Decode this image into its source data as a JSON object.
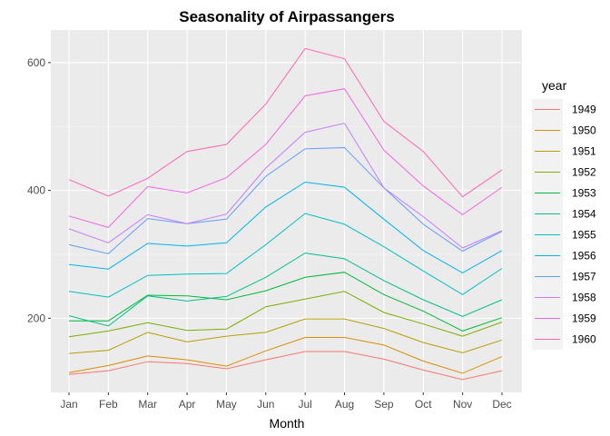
{
  "chart_data": {
    "type": "line",
    "title": "Seasonality of Airpassangers",
    "xlabel": "Month",
    "ylabel": "",
    "legend_title": "year",
    "legend_position": "right",
    "grid": true,
    "categories": [
      "Jan",
      "Feb",
      "Mar",
      "Apr",
      "May",
      "Jun",
      "Jul",
      "Aug",
      "Sep",
      "Oct",
      "Nov",
      "Dec"
    ],
    "ylim": [
      84,
      651
    ],
    "yticks": [
      200,
      400,
      600
    ],
    "colors": [
      "#F8766D",
      "#DE8C00",
      "#B79F00",
      "#7CAE00",
      "#00BA38",
      "#00C08B",
      "#00BFC4",
      "#00B4F0",
      "#619CFF",
      "#C77CFF",
      "#F564E3",
      "#FF64B0"
    ],
    "series": [
      {
        "name": "1949",
        "values": [
          112,
          118,
          132,
          129,
          121,
          135,
          148,
          148,
          136,
          119,
          104,
          118
        ]
      },
      {
        "name": "1950",
        "values": [
          115,
          126,
          141,
          135,
          125,
          149,
          170,
          170,
          158,
          133,
          114,
          140
        ]
      },
      {
        "name": "1951",
        "values": [
          145,
          150,
          178,
          163,
          172,
          178,
          199,
          199,
          184,
          162,
          146,
          166
        ]
      },
      {
        "name": "1952",
        "values": [
          171,
          180,
          193,
          181,
          183,
          218,
          230,
          242,
          209,
          191,
          172,
          194
        ]
      },
      {
        "name": "1953",
        "values": [
          196,
          196,
          236,
          235,
          229,
          243,
          264,
          272,
          237,
          211,
          180,
          201
        ]
      },
      {
        "name": "1954",
        "values": [
          204,
          188,
          235,
          227,
          234,
          264,
          302,
          293,
          259,
          229,
          203,
          229
        ]
      },
      {
        "name": "1955",
        "values": [
          242,
          233,
          267,
          269,
          270,
          315,
          364,
          347,
          312,
          274,
          237,
          278
        ]
      },
      {
        "name": "1956",
        "values": [
          284,
          277,
          317,
          313,
          318,
          374,
          413,
          405,
          355,
          306,
          271,
          306
        ]
      },
      {
        "name": "1957",
        "values": [
          315,
          301,
          356,
          348,
          355,
          422,
          465,
          467,
          404,
          347,
          305,
          336
        ]
      },
      {
        "name": "1958",
        "values": [
          340,
          318,
          362,
          348,
          363,
          435,
          491,
          505,
          404,
          359,
          310,
          337
        ]
      },
      {
        "name": "1959",
        "values": [
          360,
          342,
          406,
          396,
          420,
          472,
          548,
          559,
          463,
          407,
          362,
          405
        ]
      },
      {
        "name": "1960",
        "values": [
          417,
          391,
          419,
          461,
          472,
          535,
          622,
          606,
          508,
          461,
          390,
          432
        ]
      }
    ]
  }
}
